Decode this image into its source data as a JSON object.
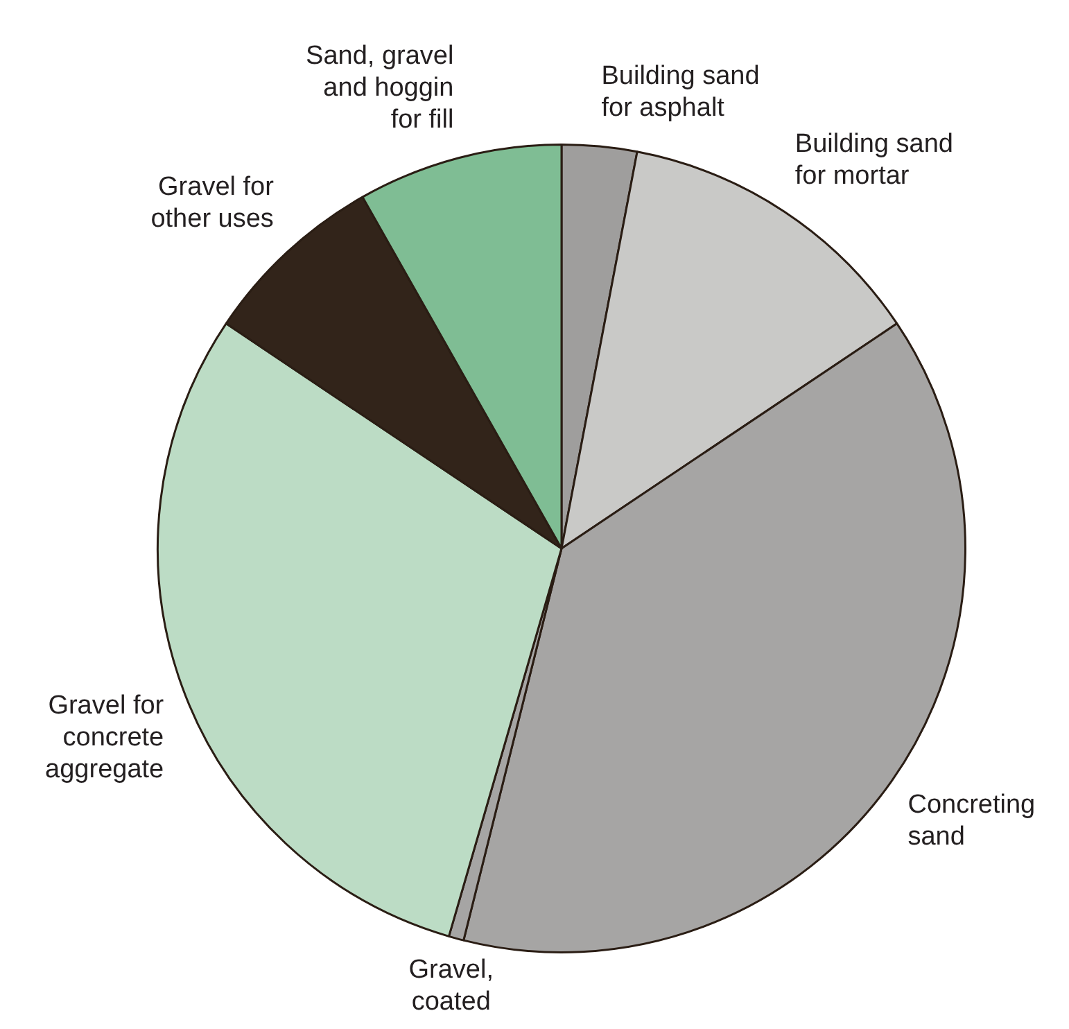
{
  "chart_data": {
    "type": "pie",
    "categories": [
      "Building sand\nfor asphalt",
      "Building sand\nfor mortar",
      "Concreting\nsand",
      "Gravel,\ncoated",
      "Gravel for\nconcrete\naggregate",
      "Gravel for\nother uses",
      "Sand, gravel\nand hoggin\nfor fill"
    ],
    "values": [
      3,
      12.6,
      38.3,
      0.6,
      29.9,
      7.4,
      8.2
    ],
    "colors": [
      "#9f9e9d",
      "#c9c9c7",
      "#a6a5a4",
      "#a6a5a4",
      "#bcdcc5",
      "#32241a",
      "#7fbd94"
    ],
    "legend": false
  }
}
